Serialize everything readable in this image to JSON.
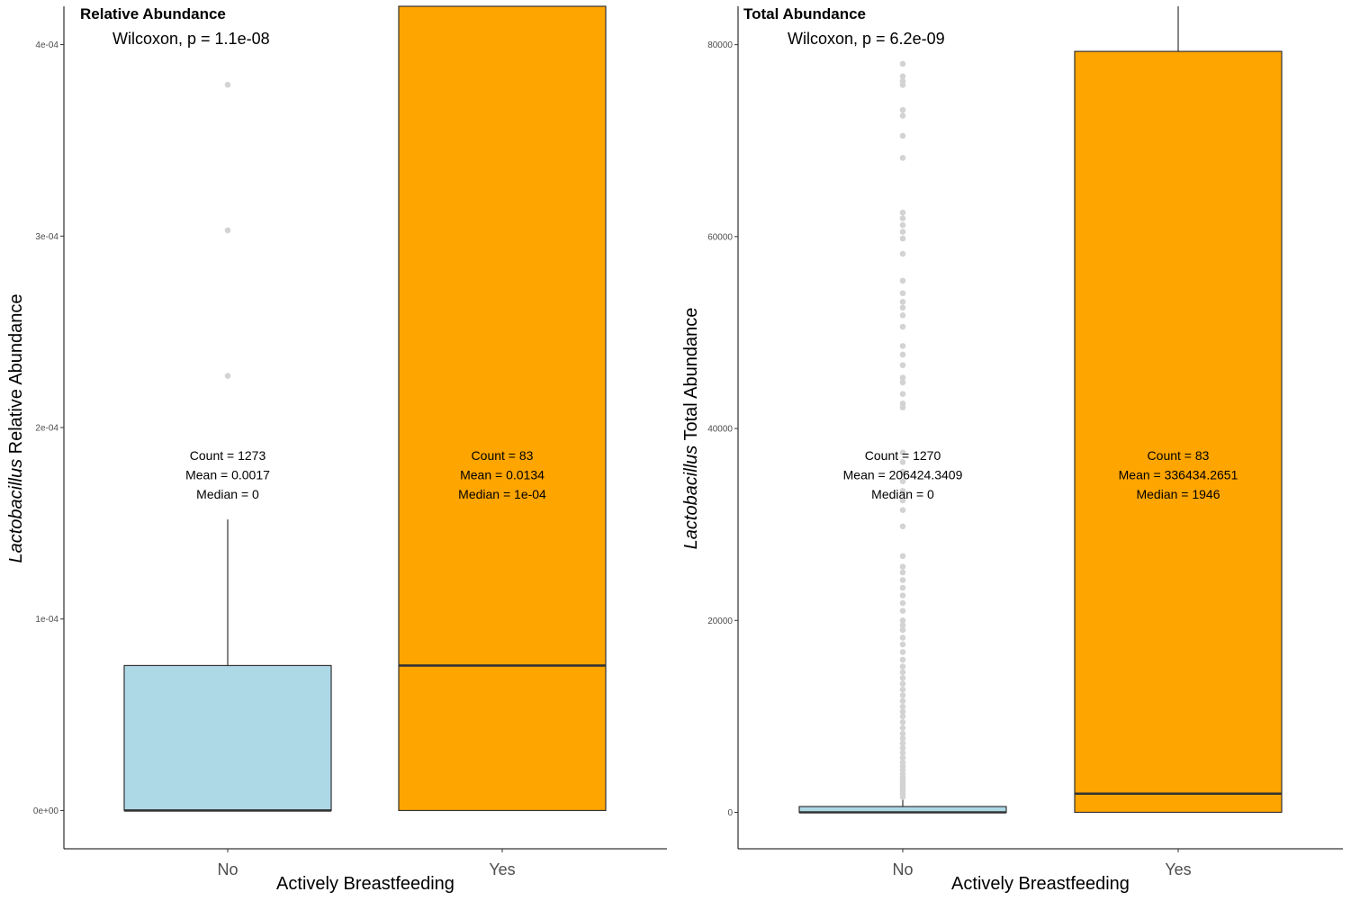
{
  "chart_data": [
    {
      "type": "boxplot",
      "panel_title": "Relative Abundance",
      "test_label": "Wilcoxon, p = 1.1e-08",
      "ylabel_italic": "Lactobacillus",
      "ylabel_rest": " Relative Abundance",
      "xlabel": "Actively Breastfeeding",
      "ylim": [
        -2e-05,
        0.00042
      ],
      "yticks": [
        0,
        0.0001,
        0.0002,
        0.0003,
        0.0004
      ],
      "ytick_labels": [
        "0e+00",
        "1e-04",
        "2e-04",
        "3e-04",
        "4e-04"
      ],
      "categories": [
        "No",
        "Yes"
      ],
      "boxes": [
        {
          "category": "No",
          "fill": "#add8e6",
          "q1": 0,
          "median": 0,
          "q3": 7.57e-05,
          "whisker_low": 0,
          "whisker_high": 0.000152,
          "outliers": [
            0.000227,
            0.000303,
            0.000379
          ],
          "stats": [
            "Count = 1273",
            "Mean = 0.0017",
            "Median = 0"
          ]
        },
        {
          "category": "Yes",
          "fill": "#ffa500",
          "q1": 0,
          "median": 7.57e-05,
          "q3": 0.00042,
          "whisker_low": 0,
          "whisker_high": 0.00042,
          "outliers": [],
          "stats": [
            "Count = 83",
            "Mean = 0.0134",
            "Median = 1e-04"
          ]
        }
      ]
    },
    {
      "type": "boxplot",
      "panel_title": "Total Abundance",
      "test_label": "Wilcoxon, p = 6.2e-09",
      "ylabel_italic": "Lactobacillus",
      "ylabel_rest": " Total Abundance",
      "xlabel": "Actively Breastfeeding",
      "ylim": [
        -3800,
        84000
      ],
      "yticks": [
        0,
        20000,
        40000,
        60000,
        80000
      ],
      "ytick_labels": [
        "0",
        "20000",
        "40000",
        "60000",
        "80000"
      ],
      "categories": [
        "No",
        "Yes"
      ],
      "boxes": [
        {
          "category": "No",
          "fill": "#add8e6",
          "q1": 0,
          "median": 0,
          "q3": 600,
          "whisker_low": 0,
          "whisker_high": 1400,
          "outliers": [
            1600,
            1900,
            2200,
            2500,
            2800,
            3100,
            3400,
            3700,
            4000,
            4400,
            4800,
            5200,
            5700,
            6200,
            6700,
            7200,
            7700,
            8200,
            8800,
            9400,
            10000,
            10500,
            11000,
            11600,
            12200,
            12800,
            13400,
            14000,
            14600,
            15200,
            15900,
            16700,
            17500,
            18200,
            19000,
            19500,
            20000,
            21000,
            21800,
            22600,
            23400,
            24200,
            25000,
            25600,
            26700,
            29800,
            31500,
            32500,
            33500,
            34500,
            35500,
            36500,
            37500,
            42200,
            42600,
            43600,
            44800,
            45300,
            46600,
            47700,
            48600,
            50600,
            51800,
            52600,
            53200,
            54100,
            55400,
            58200,
            59800,
            60500,
            61200,
            61900,
            62500,
            68200,
            70500,
            72600,
            73200,
            75800,
            76200,
            76700,
            78000
          ],
          "stats": [
            "Count = 1270",
            "Mean = 206424.3409",
            "Median = 0"
          ]
        },
        {
          "category": "Yes",
          "fill": "#ffa500",
          "q1": 0,
          "median": 1946,
          "q3": 79300,
          "whisker_low": 0,
          "whisker_high": 84000,
          "outliers": [],
          "stats": [
            "Count = 83",
            "Mean = 336434.2651",
            "Median = 1946"
          ]
        }
      ]
    }
  ]
}
